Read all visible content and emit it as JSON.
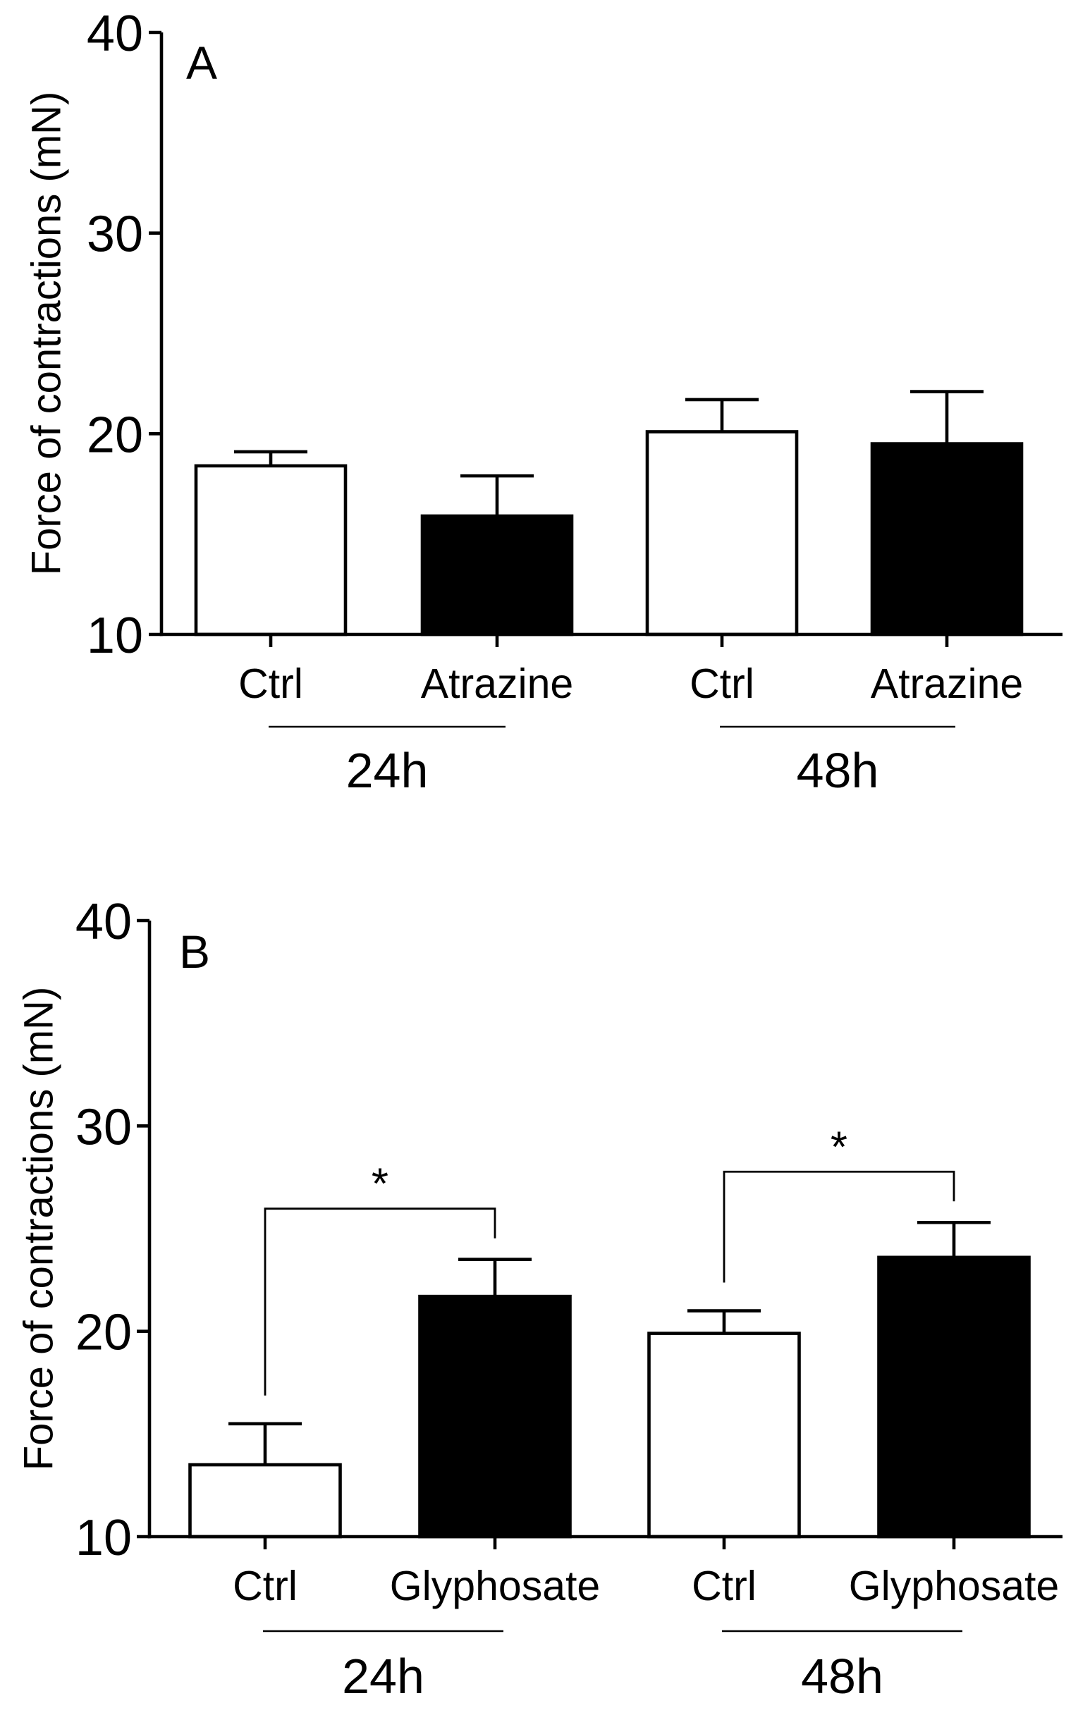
{
  "chart_data": [
    {
      "type": "bar",
      "panel_label": "A",
      "categories": [
        "Ctrl",
        "Atrazine",
        "Ctrl",
        "Atrazine"
      ],
      "values": [
        18.4,
        15.9,
        20.1,
        19.5
      ],
      "errors": [
        0.7,
        2.0,
        1.6,
        2.6
      ],
      "bar_colors": [
        "#ffffff",
        "#000000",
        "#ffffff",
        "#000000"
      ],
      "groups": [
        {
          "label": "24h",
          "members": [
            0,
            1
          ]
        },
        {
          "label": "48h",
          "members": [
            2,
            3
          ]
        }
      ],
      "ylabel": "Force of contractions (mN)",
      "ylim": [
        10,
        40
      ],
      "yticks": [
        10,
        20,
        30,
        40
      ],
      "grid": false,
      "significance": []
    },
    {
      "type": "bar",
      "panel_label": "B",
      "categories": [
        "Ctrl",
        "Glyphosate",
        "Ctrl",
        "Glyphosate"
      ],
      "values": [
        13.5,
        21.7,
        19.9,
        23.6
      ],
      "errors": [
        2.0,
        1.8,
        1.1,
        1.7
      ],
      "bar_colors": [
        "#ffffff",
        "#000000",
        "#ffffff",
        "#000000"
      ],
      "groups": [
        {
          "label": "24h",
          "members": [
            0,
            1
          ]
        },
        {
          "label": "48h",
          "members": [
            2,
            3
          ]
        }
      ],
      "ylabel": "Force of contractions (mN)",
      "ylim": [
        10,
        40
      ],
      "yticks": [
        10,
        20,
        30,
        40
      ],
      "grid": false,
      "significance": [
        {
          "between": [
            0,
            1
          ],
          "label": "*"
        },
        {
          "between": [
            2,
            3
          ],
          "label": "*"
        }
      ]
    }
  ]
}
